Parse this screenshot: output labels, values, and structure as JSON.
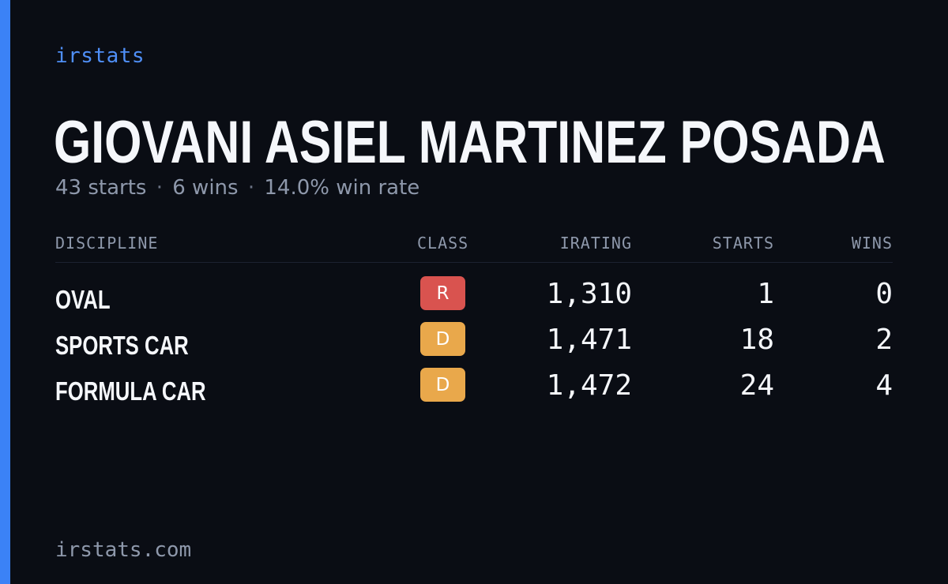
{
  "brand": "irstats",
  "driver": {
    "name": "GIOVANI ASIEL MARTINEZ POSADA"
  },
  "summary": {
    "starts": "43 starts",
    "wins": "6 wins",
    "win_rate": "14.0% win rate",
    "separator": "·"
  },
  "table": {
    "headers": {
      "discipline": "DISCIPLINE",
      "class": "CLASS",
      "irating": "IRATING",
      "starts": "STARTS",
      "wins": "WINS"
    },
    "rows": [
      {
        "discipline": "OVAL",
        "class": "R",
        "class_color": "#d9534f",
        "irating": "1,310",
        "starts": "1",
        "wins": "0"
      },
      {
        "discipline": "SPORTS CAR",
        "class": "D",
        "class_color": "#e9a84b",
        "irating": "1,471",
        "starts": "18",
        "wins": "2"
      },
      {
        "discipline": "FORMULA CAR",
        "class": "D",
        "class_color": "#e9a84b",
        "irating": "1,472",
        "starts": "24",
        "wins": "4"
      }
    ]
  },
  "footer": "irstats.com",
  "colors": {
    "background": "#0a0d14",
    "accent": "#3b82f6",
    "class_r": "#d9534f",
    "class_d": "#e9a84b"
  }
}
